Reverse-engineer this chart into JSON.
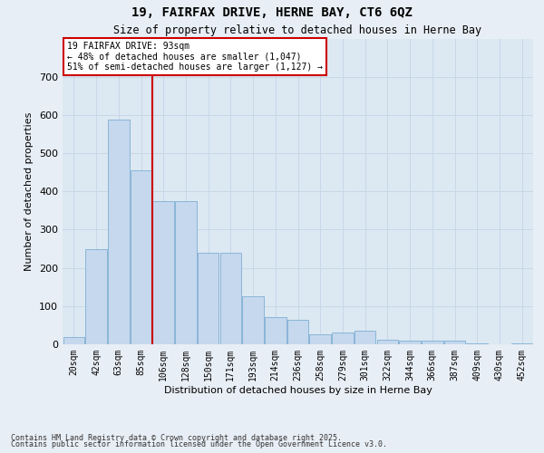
{
  "title1": "19, FAIRFAX DRIVE, HERNE BAY, CT6 6QZ",
  "title2": "Size of property relative to detached houses in Herne Bay",
  "xlabel": "Distribution of detached houses by size in Herne Bay",
  "ylabel": "Number of detached properties",
  "categories": [
    "20sqm",
    "42sqm",
    "63sqm",
    "85sqm",
    "106sqm",
    "128sqm",
    "150sqm",
    "171sqm",
    "193sqm",
    "214sqm",
    "236sqm",
    "258sqm",
    "279sqm",
    "301sqm",
    "322sqm",
    "344sqm",
    "366sqm",
    "387sqm",
    "409sqm",
    "430sqm",
    "452sqm"
  ],
  "values": [
    20,
    248,
    588,
    454,
    375,
    375,
    240,
    240,
    125,
    70,
    65,
    25,
    30,
    35,
    12,
    10,
    10,
    10,
    2,
    0,
    2
  ],
  "bar_color": "#c5d8ed",
  "bar_edge_color": "#7fafd4",
  "vline_color": "#cc0000",
  "vline_index": 3.5,
  "annotation_title": "19 FAIRFAX DRIVE: 93sqm",
  "annotation_line2": "← 48% of detached houses are smaller (1,047)",
  "annotation_line3": "51% of semi-detached houses are larger (1,127) →",
  "annotation_box_color": "#cc0000",
  "ylim": [
    0,
    800
  ],
  "yticks": [
    0,
    100,
    200,
    300,
    400,
    500,
    600,
    700
  ],
  "footer1": "Contains HM Land Registry data © Crown copyright and database right 2025.",
  "footer2": "Contains public sector information licensed under the Open Government Licence v3.0.",
  "bg_color": "#e8eef5",
  "plot_bg_color": "#dce8f2",
  "grid_color": "#c8d8e8"
}
